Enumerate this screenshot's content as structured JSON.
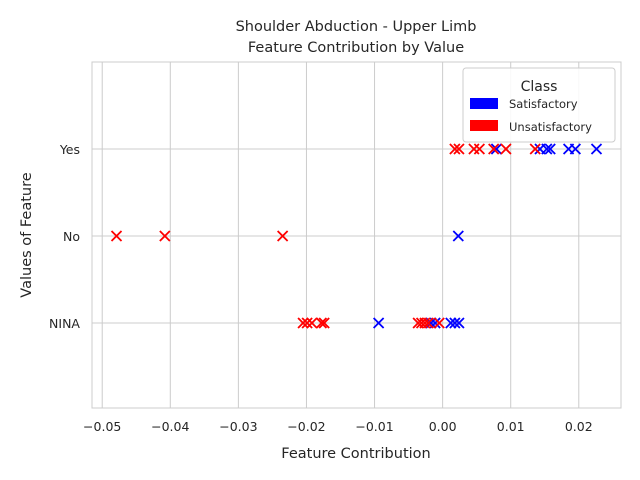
{
  "chart_data": {
    "type": "scatter",
    "title_line1": "Shoulder Abduction - Upper Limb",
    "title_line2": "Feature Contribution by Value",
    "xlabel": "Feature Contribution",
    "ylabel": "Values of Feature",
    "xlim": [
      -0.0515,
      0.0262
    ],
    "x_ticks": [
      -0.05,
      -0.04,
      -0.03,
      -0.02,
      -0.01,
      0.0,
      0.01,
      0.02
    ],
    "x_tick_labels": [
      "−0.05",
      "−0.04",
      "−0.03",
      "−0.02",
      "−0.01",
      "0.00",
      "0.01",
      "0.02"
    ],
    "categories": [
      "NINA",
      "No",
      "Yes"
    ],
    "grid": true,
    "marker": "x",
    "legend": {
      "title": "Class",
      "placement": "top-right",
      "entries": [
        {
          "label": "Satisfactory",
          "color": "#0000ff"
        },
        {
          "label": "Unsatisfactory",
          "color": "#ff0000"
        }
      ]
    },
    "series": [
      {
        "name": "Satisfactory",
        "color": "#0000ff",
        "points": [
          {
            "x": 0.0079,
            "y": "Yes"
          },
          {
            "x": 0.0143,
            "y": "Yes"
          },
          {
            "x": 0.0153,
            "y": "Yes"
          },
          {
            "x": 0.0158,
            "y": "Yes"
          },
          {
            "x": 0.0185,
            "y": "Yes"
          },
          {
            "x": 0.0195,
            "y": "Yes"
          },
          {
            "x": 0.0226,
            "y": "Yes"
          },
          {
            "x": 0.0023,
            "y": "No"
          },
          {
            "x": -0.0094,
            "y": "NINA"
          },
          {
            "x": -0.0017,
            "y": "NINA"
          },
          {
            "x": -0.0011,
            "y": "NINA"
          },
          {
            "x": 0.0012,
            "y": "NINA"
          },
          {
            "x": 0.0018,
            "y": "NINA"
          },
          {
            "x": 0.0024,
            "y": "NINA"
          }
        ]
      },
      {
        "name": "Unsatisfactory",
        "color": "#ff0000",
        "points": [
          {
            "x": 0.0018,
            "y": "Yes"
          },
          {
            "x": 0.0024,
            "y": "Yes"
          },
          {
            "x": 0.0046,
            "y": "Yes"
          },
          {
            "x": 0.0054,
            "y": "Yes"
          },
          {
            "x": 0.0075,
            "y": "Yes"
          },
          {
            "x": 0.0093,
            "y": "Yes"
          },
          {
            "x": 0.0136,
            "y": "Yes"
          },
          {
            "x": -0.0479,
            "y": "No"
          },
          {
            "x": -0.0408,
            "y": "No"
          },
          {
            "x": -0.0235,
            "y": "No"
          },
          {
            "x": -0.0205,
            "y": "NINA"
          },
          {
            "x": -0.0199,
            "y": "NINA"
          },
          {
            "x": -0.0192,
            "y": "NINA"
          },
          {
            "x": -0.0178,
            "y": "NINA"
          },
          {
            "x": -0.0174,
            "y": "NINA"
          },
          {
            "x": -0.0036,
            "y": "NINA"
          },
          {
            "x": -0.0031,
            "y": "NINA"
          },
          {
            "x": -0.0026,
            "y": "NINA"
          },
          {
            "x": -0.0021,
            "y": "NINA"
          },
          {
            "x": -0.0005,
            "y": "NINA"
          }
        ]
      }
    ]
  }
}
